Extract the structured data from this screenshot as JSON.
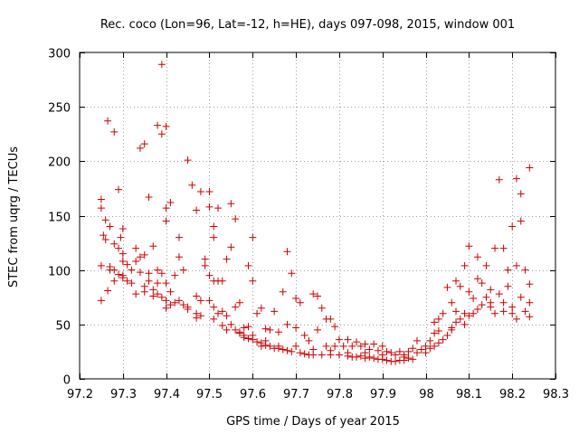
{
  "chart_data": {
    "type": "scatter",
    "title": "Rec. coco (Lon=96, Lat=-12, h=HE), days 097-098, 2015, window 001",
    "xlabel": "GPS time / Days of year 2015",
    "ylabel": "STEC from uqrg / TECUs",
    "xlim": [
      97.2,
      98.3
    ],
    "ylim": [
      0,
      300
    ],
    "xticks": [
      97.2,
      97.3,
      97.4,
      97.5,
      97.6,
      97.7,
      97.8,
      97.9,
      98,
      98.1,
      98.2,
      98.3
    ],
    "xtick_labels": [
      "97.2",
      "97.3",
      "97.4",
      "97.5",
      "97.6",
      "97.7",
      "97.8",
      "97.9",
      "98",
      "98.1",
      "98.2",
      "98.3"
    ],
    "yticks": [
      0,
      50,
      100,
      150,
      200,
      250,
      300
    ],
    "ytick_labels": [
      "0",
      "50",
      "100",
      "150",
      "200",
      "250",
      "300"
    ],
    "grid": true,
    "marker": "+",
    "color": "#cc0000",
    "series": [
      {
        "name": "STEC",
        "points": [
          [
            97.25,
            165
          ],
          [
            97.25,
            157
          ],
          [
            97.26,
            146
          ],
          [
            97.255,
            132
          ],
          [
            97.26,
            128
          ],
          [
            97.25,
            104
          ],
          [
            97.25,
            72
          ],
          [
            97.265,
            81
          ],
          [
            97.265,
            237
          ],
          [
            97.28,
            227
          ],
          [
            97.27,
            140
          ],
          [
            97.28,
            124
          ],
          [
            97.29,
            120
          ],
          [
            97.29,
            174
          ],
          [
            97.3,
            138
          ],
          [
            97.295,
            130
          ],
          [
            97.3,
            115
          ],
          [
            97.27,
            103
          ],
          [
            97.28,
            100
          ],
          [
            97.28,
            90
          ],
          [
            97.29,
            96
          ],
          [
            97.3,
            93
          ],
          [
            97.3,
            108
          ],
          [
            97.31,
            105
          ],
          [
            97.31,
            90
          ],
          [
            97.32,
            88
          ],
          [
            97.33,
            120
          ],
          [
            97.33,
            108
          ],
          [
            97.34,
            112
          ],
          [
            97.34,
            98
          ],
          [
            97.35,
            85
          ],
          [
            97.35,
            114
          ],
          [
            97.34,
            212
          ],
          [
            97.35,
            216
          ],
          [
            97.36,
            167
          ],
          [
            97.36,
            97
          ],
          [
            97.36,
            90
          ],
          [
            97.37,
            82
          ],
          [
            97.38,
            78
          ],
          [
            97.38,
            88
          ],
          [
            97.38,
            233
          ],
          [
            97.39,
            225
          ],
          [
            97.39,
            289
          ],
          [
            97.4,
            232
          ],
          [
            97.37,
            122
          ],
          [
            97.38,
            100
          ],
          [
            97.39,
            97
          ],
          [
            97.4,
            157
          ],
          [
            97.41,
            162
          ],
          [
            97.4,
            145
          ],
          [
            97.4,
            88
          ],
          [
            97.39,
            75
          ],
          [
            97.4,
            72
          ],
          [
            97.41,
            68
          ],
          [
            97.41,
            80
          ],
          [
            97.42,
            70
          ],
          [
            97.42,
            95
          ],
          [
            97.43,
            112
          ],
          [
            97.43,
            130
          ],
          [
            97.44,
            100
          ],
          [
            97.44,
            68
          ],
          [
            97.45,
            64
          ],
          [
            97.45,
            201
          ],
          [
            97.46,
            178
          ],
          [
            97.47,
            155
          ],
          [
            97.47,
            76
          ],
          [
            97.47,
            60
          ],
          [
            97.48,
            72
          ],
          [
            97.48,
            58
          ],
          [
            97.48,
            172
          ],
          [
            97.49,
            110
          ],
          [
            97.49,
            104
          ],
          [
            97.5,
            172
          ],
          [
            97.5,
            158
          ],
          [
            97.51,
            140
          ],
          [
            97.51,
            130
          ],
          [
            97.5,
            95
          ],
          [
            97.51,
            90
          ],
          [
            97.5,
            72
          ],
          [
            97.51,
            66
          ],
          [
            97.51,
            55
          ],
          [
            97.52,
            90
          ],
          [
            97.52,
            157
          ],
          [
            97.53,
            90
          ],
          [
            97.53,
            62
          ],
          [
            97.53,
            49
          ],
          [
            97.54,
            110
          ],
          [
            97.54,
            58
          ],
          [
            97.55,
            161
          ],
          [
            97.55,
            121
          ],
          [
            97.55,
            50
          ],
          [
            97.56,
            147
          ],
          [
            97.56,
            66
          ],
          [
            97.56,
            45
          ],
          [
            97.57,
            43
          ],
          [
            97.57,
            42
          ],
          [
            97.57,
            70
          ],
          [
            97.58,
            40
          ],
          [
            97.58,
            38
          ],
          [
            97.59,
            104
          ],
          [
            97.59,
            48
          ],
          [
            97.59,
            37
          ],
          [
            97.6,
            130
          ],
          [
            97.6,
            90
          ],
          [
            97.6,
            36
          ],
          [
            97.61,
            60
          ],
          [
            97.61,
            34
          ],
          [
            97.62,
            65
          ],
          [
            97.62,
            33
          ],
          [
            97.62,
            30
          ],
          [
            97.63,
            46
          ],
          [
            97.63,
            31
          ],
          [
            97.64,
            45
          ],
          [
            97.64,
            30
          ],
          [
            97.65,
            28
          ],
          [
            97.65,
            62
          ],
          [
            97.66,
            28
          ],
          [
            97.66,
            43
          ],
          [
            97.67,
            27
          ],
          [
            97.67,
            80
          ],
          [
            97.68,
            117
          ],
          [
            97.68,
            50
          ],
          [
            97.68,
            26
          ],
          [
            97.69,
            97
          ],
          [
            97.69,
            25
          ],
          [
            97.7,
            47
          ],
          [
            97.7,
            74
          ],
          [
            97.71,
            70
          ],
          [
            97.71,
            24
          ],
          [
            97.72,
            40
          ],
          [
            97.72,
            23
          ],
          [
            97.73,
            35
          ],
          [
            97.73,
            22
          ],
          [
            97.74,
            78
          ],
          [
            97.74,
            22
          ],
          [
            97.75,
            45
          ],
          [
            97.75,
            76
          ],
          [
            97.76,
            65
          ],
          [
            97.76,
            22
          ],
          [
            97.77,
            55
          ],
          [
            97.77,
            30
          ],
          [
            97.78,
            55
          ],
          [
            97.78,
            22
          ],
          [
            97.79,
            48
          ],
          [
            97.79,
            30
          ],
          [
            97.8,
            22
          ],
          [
            97.8,
            36
          ],
          [
            97.81,
            30
          ],
          [
            97.82,
            21
          ],
          [
            97.82,
            36
          ],
          [
            97.83,
            20
          ],
          [
            97.83,
            30
          ],
          [
            97.84,
            20
          ],
          [
            97.84,
            34
          ],
          [
            97.85,
            21
          ],
          [
            97.85,
            30
          ],
          [
            97.86,
            19
          ],
          [
            97.86,
            32
          ],
          [
            97.87,
            20
          ],
          [
            97.87,
            27
          ],
          [
            97.88,
            19
          ],
          [
            97.88,
            32
          ],
          [
            97.89,
            18
          ],
          [
            97.89,
            26
          ],
          [
            97.9,
            18
          ],
          [
            97.9,
            30
          ],
          [
            97.91,
            17
          ],
          [
            97.91,
            25
          ],
          [
            97.92,
            16
          ],
          [
            97.92,
            24
          ],
          [
            97.93,
            16
          ],
          [
            97.93,
            22
          ],
          [
            97.94,
            17
          ],
          [
            97.94,
            25
          ],
          [
            97.95,
            17
          ],
          [
            97.95,
            22
          ],
          [
            97.96,
            19
          ],
          [
            97.96,
            25
          ],
          [
            97.97,
            18
          ],
          [
            97.97,
            28
          ],
          [
            97.98,
            24
          ],
          [
            97.98,
            35
          ],
          [
            97.99,
            27
          ],
          [
            98,
            24
          ],
          [
            98,
            30
          ],
          [
            98.01,
            28
          ],
          [
            98.01,
            35
          ],
          [
            98.02,
            30
          ],
          [
            98.02,
            42
          ],
          [
            98.02,
            52
          ],
          [
            98.03,
            33
          ],
          [
            98.03,
            55
          ],
          [
            98.04,
            36
          ],
          [
            98.04,
            60
          ],
          [
            98.05,
            40
          ],
          [
            98.05,
            84
          ],
          [
            98.06,
            45
          ],
          [
            98.06,
            70
          ],
          [
            98.07,
            52
          ],
          [
            98.07,
            62
          ],
          [
            98.07,
            90
          ],
          [
            98.08,
            55
          ],
          [
            98.08,
            85
          ],
          [
            98.09,
            50
          ],
          [
            98.09,
            104
          ],
          [
            98.1,
            58
          ],
          [
            98.1,
            80
          ],
          [
            98.1,
            122
          ],
          [
            98.11,
            60
          ],
          [
            98.11,
            74
          ],
          [
            98.12,
            92
          ],
          [
            98.12,
            112
          ],
          [
            98.13,
            68
          ],
          [
            98.13,
            88
          ],
          [
            98.14,
            75
          ],
          [
            98.14,
            104
          ],
          [
            98.15,
            66
          ],
          [
            98.15,
            82
          ],
          [
            98.16,
            120
          ],
          [
            98.16,
            60
          ],
          [
            98.17,
            78
          ],
          [
            98.17,
            183
          ],
          [
            98.18,
            120
          ],
          [
            98.18,
            70
          ],
          [
            98.19,
            85
          ],
          [
            98.19,
            100
          ],
          [
            98.2,
            140
          ],
          [
            98.2,
            60
          ],
          [
            98.21,
            104
          ],
          [
            98.21,
            184
          ],
          [
            98.21,
            55
          ],
          [
            98.22,
            170
          ],
          [
            98.22,
            75
          ],
          [
            98.22,
            145
          ],
          [
            98.23,
            62
          ],
          [
            98.23,
            100
          ],
          [
            98.24,
            194
          ],
          [
            98.24,
            87
          ],
          [
            98.24,
            70
          ],
          [
            98.24,
            57
          ],
          [
            97.27,
            100
          ],
          [
            97.3,
            95
          ],
          [
            97.32,
            100
          ],
          [
            97.33,
            78
          ],
          [
            97.35,
            80
          ],
          [
            97.37,
            76
          ],
          [
            97.4,
            65
          ],
          [
            97.43,
            72
          ],
          [
            97.45,
            66
          ],
          [
            97.47,
            56
          ],
          [
            97.52,
            60
          ],
          [
            97.54,
            45
          ],
          [
            97.58,
            47
          ],
          [
            97.6,
            40
          ],
          [
            97.63,
            35
          ],
          [
            97.66,
            30
          ],
          [
            97.7,
            30
          ],
          [
            97.74,
            27
          ],
          [
            97.78,
            26
          ],
          [
            97.82,
            24
          ],
          [
            97.86,
            24
          ],
          [
            97.9,
            22
          ],
          [
            97.95,
            20
          ],
          [
            98.03,
            44
          ],
          [
            98.06,
            47
          ],
          [
            98.09,
            60
          ],
          [
            98.12,
            64
          ],
          [
            98.15,
            70
          ],
          [
            98.18,
            62
          ],
          [
            98.2,
            66
          ]
        ]
      }
    ]
  }
}
